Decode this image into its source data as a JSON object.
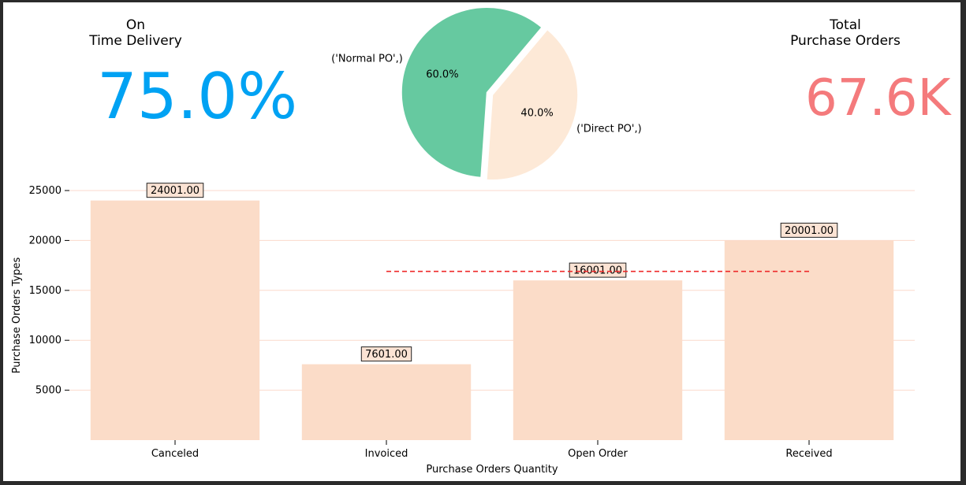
{
  "kpis": {
    "on_time": {
      "label": "On\nTime Delivery",
      "value": "75.0%",
      "color": "#00a2f3"
    },
    "total_po": {
      "label": "Total\nPurchase Orders",
      "value": "67.6K",
      "color": "#f47a7c"
    }
  },
  "chart_data": [
    {
      "type": "pie",
      "slices": [
        {
          "label": "('Normal PO',)",
          "value": 60.0,
          "pct_label": "60.0%",
          "color": "#66c9a0"
        },
        {
          "label": "('Direct PO',)",
          "value": 40.0,
          "pct_label": "40.0%",
          "color": "#fde9d7"
        }
      ]
    },
    {
      "type": "bar",
      "categories": [
        "Canceled",
        "Invoiced",
        "Open Order",
        "Received"
      ],
      "values": [
        24001.0,
        7601.0,
        16001.0,
        20001.0
      ],
      "data_labels": [
        "24001.00",
        "7601.00",
        "16001.00",
        "20001.00"
      ],
      "xlabel": "Purchase Orders Quantity",
      "ylabel": "Purchase Orders Types",
      "yticks": [
        5000,
        10000,
        15000,
        20000,
        25000
      ],
      "ylim": [
        0,
        25000
      ],
      "bar_color": "#fbdcc8",
      "grid": "horizontal",
      "reference_line": {
        "value": 16901,
        "style": "dashed",
        "color": "#ee2a2a",
        "from_category": "Invoiced",
        "to_category": "Received"
      }
    }
  ]
}
